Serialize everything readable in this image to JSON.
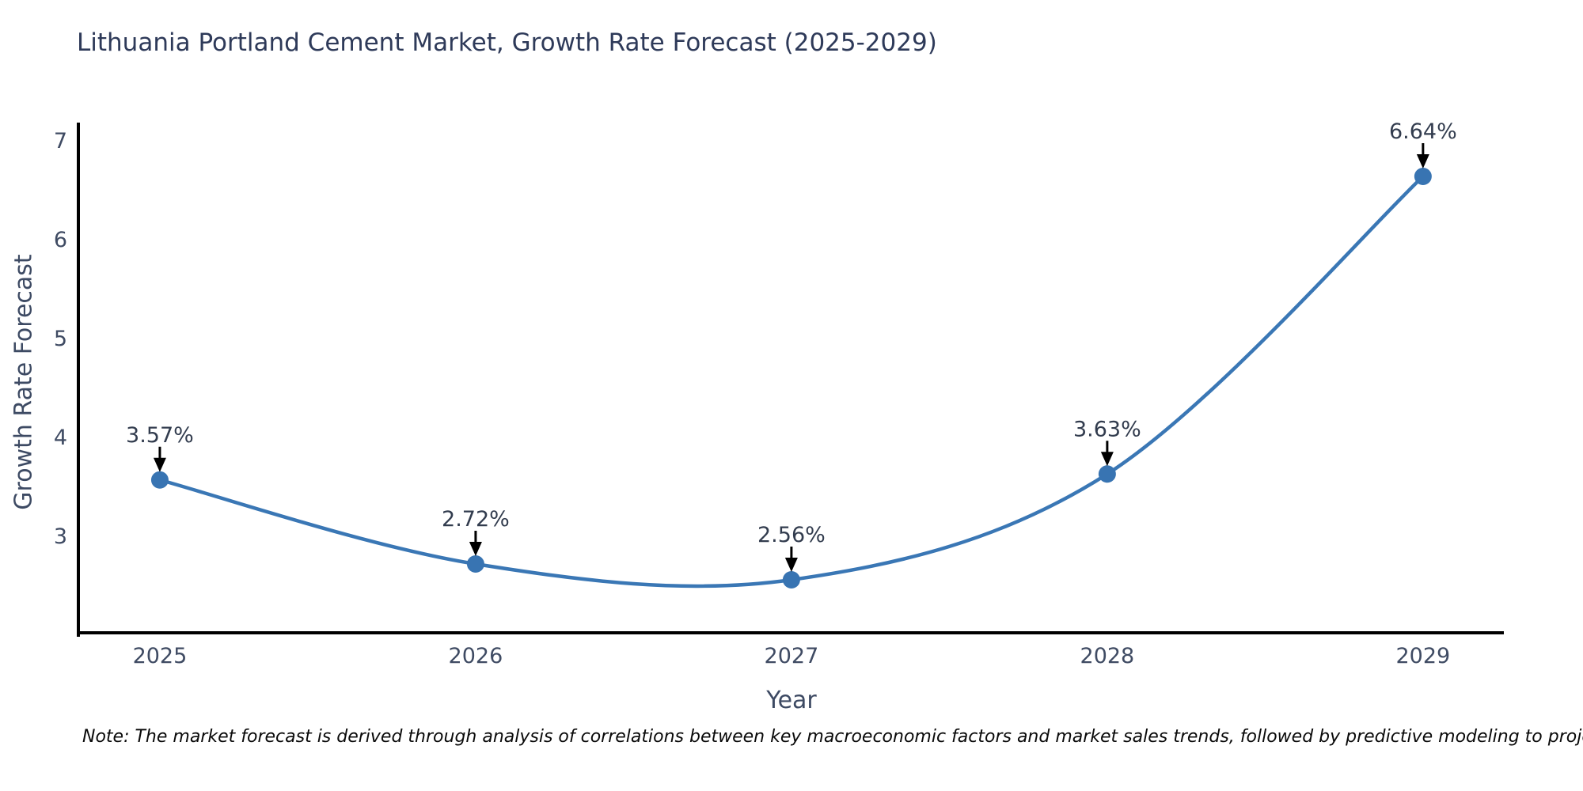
{
  "title": "Lithuania Portland Cement Market, Growth Rate Forecast (2025-2029)",
  "note": "Note: The market forecast is derived through analysis of correlations between key macroeconomic factors and market sales trends, followed by predictive modeling to project future sales.",
  "chart_data": {
    "type": "line",
    "title": "Lithuania Portland Cement Market, Growth Rate Forecast (2025-2029)",
    "xlabel": "Year",
    "ylabel": "Growth Rate Forecast",
    "x": [
      2025,
      2026,
      2027,
      2028,
      2029
    ],
    "values": [
      3.57,
      2.72,
      2.56,
      3.63,
      6.64
    ],
    "point_labels": [
      "3.57%",
      "2.72%",
      "2.56%",
      "3.63%",
      "6.64%"
    ],
    "xtick_labels": [
      "2025",
      "2026",
      "2027",
      "2028",
      "2029"
    ],
    "yticks": [
      3,
      4,
      5,
      6,
      7
    ],
    "xlim": [
      2024.742,
      2029.256
    ],
    "ylim": [
      2.024,
      7.184
    ],
    "grid": false,
    "legend": false,
    "smooth": true,
    "colors": {
      "line": "#3a77b5",
      "marker": "#3874b2",
      "axis": "#000000",
      "arrow": "#000000",
      "tick_text": "#3f4b63",
      "annotation_text": "#323c4e",
      "title_text": "#2e3a59"
    }
  }
}
